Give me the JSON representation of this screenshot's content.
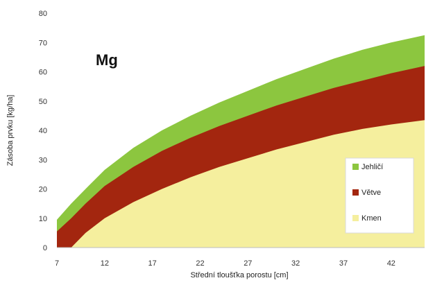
{
  "chart_data": {
    "type": "area",
    "stacked": true,
    "annotation": "Mg",
    "xlabel": "Střední tloušťka porostu [cm]",
    "ylabel": "Zásoba prvku  [kg/ha]",
    "xlim": [
      7,
      45.5
    ],
    "ylim": [
      0,
      80
    ],
    "xticks": [
      7,
      12,
      17,
      22,
      27,
      32,
      37,
      42
    ],
    "yticks": [
      0,
      10,
      20,
      30,
      40,
      50,
      60,
      70,
      80
    ],
    "grid": false,
    "legend_position": "right",
    "series": [
      {
        "name": "Kmen",
        "color": "#f5ef9e",
        "x": [
          8.5,
          10,
          12,
          15,
          18,
          21,
          24,
          27,
          30,
          33,
          36,
          39,
          42,
          45.5
        ],
        "y_top": [
          0,
          5,
          10,
          15.5,
          20,
          24,
          27.5,
          30.5,
          33.5,
          36,
          38.5,
          40.5,
          42,
          43.5
        ]
      },
      {
        "name": "Větve",
        "color": "#a3260f",
        "x": [
          7,
          8.5,
          10,
          12,
          15,
          18,
          21,
          24,
          27,
          30,
          33,
          36,
          39,
          42,
          45.5
        ],
        "y_top": [
          5.5,
          10,
          15,
          21,
          27.5,
          33,
          37.5,
          41.5,
          45,
          48.5,
          51.5,
          54.5,
          57,
          59.5,
          62
        ]
      },
      {
        "name": "Jehličí",
        "color": "#8cc63f",
        "x": [
          7,
          8.5,
          10,
          12,
          15,
          18,
          21,
          24,
          27,
          30,
          33,
          36,
          39,
          42,
          45.5
        ],
        "y_top": [
          9.5,
          15,
          20,
          26.5,
          34,
          40,
          45,
          49.5,
          53.5,
          57.5,
          61,
          64.5,
          67.5,
          70,
          72.5
        ]
      }
    ],
    "legend_order": [
      "Jehličí",
      "Větve",
      "Kmen"
    ]
  }
}
